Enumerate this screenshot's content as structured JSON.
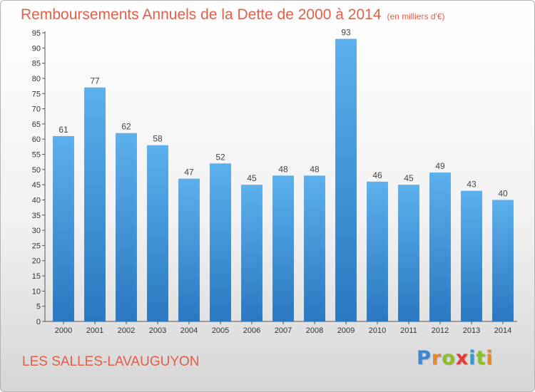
{
  "header": {
    "title": "Remboursements Annuels de la Dette de 2000 à 2014",
    "unit_note": "(en milliers d'€)"
  },
  "footer": {
    "commune": "LES SALLES-LAVAUGUYON",
    "logo_letters": [
      {
        "char": "P",
        "color": "#3b86d1"
      },
      {
        "char": "r",
        "color": "#e8852a"
      },
      {
        "char": "o",
        "color": "#8cbf26"
      },
      {
        "char": "x",
        "color": "#e23b2f"
      },
      {
        "char": "i",
        "color": "#2e9bd6"
      },
      {
        "char": "t",
        "color": "#8cbf26"
      },
      {
        "char": "i",
        "color": "#e8852a"
      }
    ]
  },
  "chart_data": {
    "type": "bar",
    "categories": [
      "2000",
      "2001",
      "2002",
      "2003",
      "2004",
      "2005",
      "2006",
      "2007",
      "2008",
      "2009",
      "2010",
      "2011",
      "2012",
      "2013",
      "2014"
    ],
    "values": [
      61,
      77,
      62,
      58,
      47,
      52,
      45,
      48,
      48,
      93,
      46,
      45,
      49,
      43,
      40
    ],
    "title": "Remboursements Annuels de la Dette de 2000 à 2014",
    "ylim": [
      0,
      95
    ],
    "ytick_step": 5,
    "grid": false,
    "bar_color_top": "#5cb0ec",
    "bar_color_bottom": "#2a78c0",
    "label_color": "#444444"
  }
}
